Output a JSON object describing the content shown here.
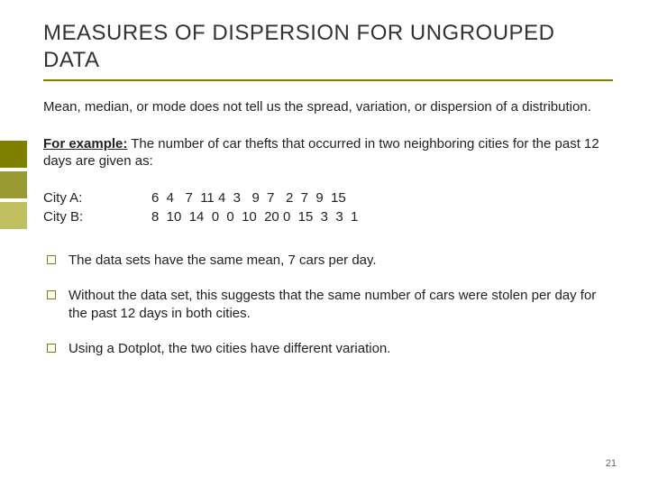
{
  "title": "MEASURES OF DISPERSION FOR UNGROUPED DATA",
  "intro": "Mean, median, or mode does not tell us the spread, variation, or dispersion of a distribution.",
  "example_label": "For example:",
  "example_text": " The number of car thefts that occurred in two neighboring cities for the past 12 days are given as:",
  "data": {
    "rowA_label": "City A:",
    "rowA_values": "6  4   7  11 4  3   9  7   2  7  9  15",
    "rowB_label": "City B:",
    "rowB_values": "8  10  14  0  0  10  20 0  15  3  3  1"
  },
  "bullets": [
    "The data sets have the same mean, 7 cars per day.",
    "Without the data set, this suggests that the same number of cars were stolen per day for the past 12 days in both cities.",
    "Using a Dotplot, the two cities have different variation."
  ],
  "page_number": "21",
  "colors": {
    "olive_dark": "#808000",
    "olive_mid": "#9a9a33",
    "olive_light": "#c0c060",
    "underline": "#808000",
    "text": "#222222",
    "title_text": "#333333",
    "bg": "#ffffff"
  },
  "sidebar_blocks": [
    "#808000",
    "#9a9a33",
    "#c0c060"
  ]
}
